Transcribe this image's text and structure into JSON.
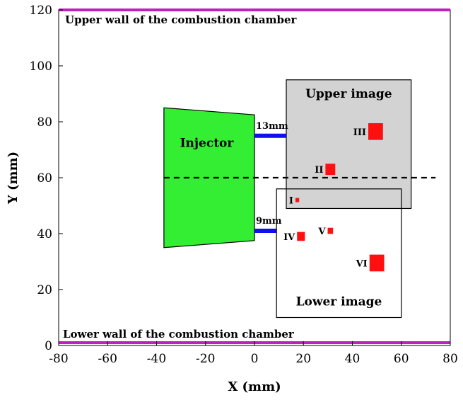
{
  "chart_data": {
    "type": "diagram",
    "xlabel": "X (mm)",
    "ylabel": "Y (mm)",
    "xlim": [
      -80,
      80
    ],
    "ylim": [
      0,
      120
    ],
    "x_ticks": [
      "-80",
      "-60",
      "-40",
      "-20",
      "0",
      "20",
      "40",
      "60",
      "80"
    ],
    "y_ticks": [
      "0",
      "20",
      "40",
      "60",
      "80",
      "100",
      "120"
    ],
    "walls": {
      "upper": {
        "label": "Upper wall of the combustion chamber",
        "y": 120,
        "color": "#c020c0"
      },
      "lower": {
        "label": "Lower wall of the combustion chamber",
        "y": 1,
        "color": "#c020c0"
      }
    },
    "injector": {
      "label": "Injector",
      "color": "#33ee33",
      "polygon": [
        [
          -37,
          35
        ],
        [
          -37,
          85
        ],
        [
          0,
          82.5
        ],
        [
          0,
          37.5
        ]
      ]
    },
    "upper_image": {
      "label": "Upper image",
      "x0": 13,
      "y0": 49,
      "x1": 64,
      "y1": 95,
      "fill": "#d3d3d3"
    },
    "lower_image": {
      "label": "Lower image",
      "x0": 9,
      "y0": 10,
      "x1": 60,
      "y1": 56,
      "fill": "none"
    },
    "dimensions": [
      {
        "label": "13mm",
        "x0": 0,
        "x1": 13,
        "y": 75,
        "color": "#1010ee"
      },
      {
        "label": "9mm",
        "x0": 0,
        "x1": 9,
        "y": 41,
        "color": "#1010ee"
      }
    ],
    "centerline": {
      "x0": -37,
      "x1": 74,
      "y": 60
    },
    "markers": [
      {
        "label": "I",
        "x": 17.5,
        "y": 52,
        "size": 1.5
      },
      {
        "label": "II",
        "x": 31,
        "y": 63,
        "size": 4
      },
      {
        "label": "III",
        "x": 49.5,
        "y": 76.5,
        "size": 6
      },
      {
        "label": "IV",
        "x": 19,
        "y": 39,
        "size": 3.2
      },
      {
        "label": "V",
        "x": 31,
        "y": 41,
        "size": 2.2
      },
      {
        "label": "VI",
        "x": 50,
        "y": 29.5,
        "size": 6
      }
    ],
    "marker_color": "#ff1010"
  }
}
